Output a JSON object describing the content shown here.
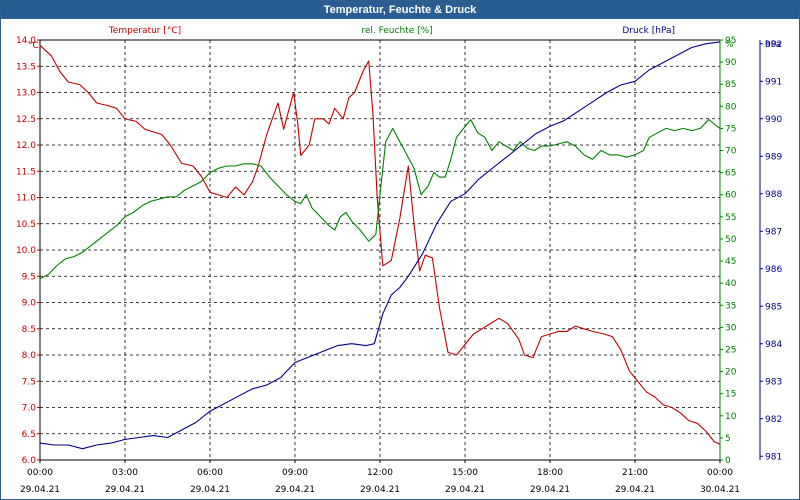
{
  "chart_data": {
    "type": "line",
    "title": "Temperatur, Feuchte & Druck",
    "grid": true,
    "x": {
      "tick_time": [
        "00:00",
        "03:00",
        "06:00",
        "09:00",
        "12:00",
        "15:00",
        "18:00",
        "21:00",
        "00:00"
      ],
      "tick_date": [
        "29.04.21",
        "29.04.21",
        "29.04.21",
        "29.04.21",
        "29.04.21",
        "29.04.21",
        "29.04.21",
        "29.04.21",
        "30.04.21"
      ],
      "range_hours": [
        0,
        24
      ]
    },
    "axes": {
      "temperature": {
        "unit": "°C",
        "ylim": [
          6.0,
          14.0
        ],
        "ticks": [
          "6.0",
          "6.5",
          "7.0",
          "7.5",
          "8.0",
          "8.5",
          "9.0",
          "9.5",
          "10.0",
          "10.5",
          "11.0",
          "11.5",
          "12.0",
          "12.5",
          "13.0",
          "13.5",
          "14.0"
        ]
      },
      "humidity": {
        "unit": "%",
        "ylim": [
          0,
          95
        ],
        "ticks": [
          "0",
          "5",
          "10",
          "15",
          "20",
          "25",
          "30",
          "35",
          "40",
          "45",
          "50",
          "55",
          "60",
          "65",
          "70",
          "75",
          "80",
          "85",
          "90",
          "95"
        ]
      },
      "pressure": {
        "unit": "hPa",
        "ylim": [
          980.9,
          992.1
        ],
        "ticks": [
          "981",
          "982",
          "983",
          "984",
          "985",
          "986",
          "987",
          "988",
          "989",
          "990",
          "991",
          "992"
        ]
      }
    },
    "series": [
      {
        "name": "Temperatur [°C]",
        "axis": "temperature",
        "color": "#c00000",
        "points": [
          [
            0,
            13.9
          ],
          [
            0.4,
            13.7
          ],
          [
            0.7,
            13.4
          ],
          [
            1.0,
            13.2
          ],
          [
            1.4,
            13.15
          ],
          [
            1.7,
            13.0
          ],
          [
            2.0,
            12.8
          ],
          [
            2.4,
            12.75
          ],
          [
            2.7,
            12.7
          ],
          [
            3.0,
            12.5
          ],
          [
            3.4,
            12.45
          ],
          [
            3.7,
            12.3
          ],
          [
            4.0,
            12.25
          ],
          [
            4.3,
            12.2
          ],
          [
            4.6,
            12.0
          ],
          [
            5.0,
            11.65
          ],
          [
            5.4,
            11.6
          ],
          [
            5.7,
            11.4
          ],
          [
            6.0,
            11.1
          ],
          [
            6.3,
            11.05
          ],
          [
            6.6,
            11.0
          ],
          [
            6.9,
            11.2
          ],
          [
            7.2,
            11.05
          ],
          [
            7.5,
            11.3
          ],
          [
            7.7,
            11.6
          ],
          [
            8.0,
            12.2
          ],
          [
            8.2,
            12.5
          ],
          [
            8.4,
            12.8
          ],
          [
            8.6,
            12.3
          ],
          [
            8.8,
            12.7
          ],
          [
            8.95,
            13.0
          ],
          [
            9.1,
            12.4
          ],
          [
            9.2,
            11.8
          ],
          [
            9.5,
            12.0
          ],
          [
            9.7,
            12.5
          ],
          [
            10.0,
            12.5
          ],
          [
            10.2,
            12.4
          ],
          [
            10.4,
            12.7
          ],
          [
            10.7,
            12.5
          ],
          [
            10.9,
            12.9
          ],
          [
            11.1,
            13.0
          ],
          [
            11.4,
            13.4
          ],
          [
            11.6,
            13.6
          ],
          [
            11.75,
            12.6
          ],
          [
            11.9,
            11.0
          ],
          [
            12.1,
            9.7
          ],
          [
            12.4,
            9.8
          ],
          [
            12.7,
            10.6
          ],
          [
            13.0,
            11.6
          ],
          [
            13.2,
            10.5
          ],
          [
            13.4,
            9.6
          ],
          [
            13.6,
            9.9
          ],
          [
            13.85,
            9.85
          ],
          [
            14.1,
            8.9
          ],
          [
            14.4,
            8.05
          ],
          [
            14.7,
            8.0
          ],
          [
            15.0,
            8.2
          ],
          [
            15.3,
            8.4
          ],
          [
            15.6,
            8.5
          ],
          [
            15.9,
            8.6
          ],
          [
            16.2,
            8.7
          ],
          [
            16.5,
            8.6
          ],
          [
            16.9,
            8.3
          ],
          [
            17.1,
            8.0
          ],
          [
            17.4,
            7.95
          ],
          [
            17.7,
            8.35
          ],
          [
            18.0,
            8.4
          ],
          [
            18.3,
            8.45
          ],
          [
            18.6,
            8.45
          ],
          [
            18.9,
            8.55
          ],
          [
            19.2,
            8.5
          ],
          [
            19.5,
            8.45
          ],
          [
            19.9,
            8.4
          ],
          [
            20.2,
            8.35
          ],
          [
            20.5,
            8.1
          ],
          [
            20.8,
            7.7
          ],
          [
            21.1,
            7.5
          ],
          [
            21.4,
            7.3
          ],
          [
            21.7,
            7.2
          ],
          [
            22.0,
            7.05
          ],
          [
            22.3,
            7.0
          ],
          [
            22.6,
            6.9
          ],
          [
            22.9,
            6.75
          ],
          [
            23.2,
            6.7
          ],
          [
            23.5,
            6.55
          ],
          [
            23.8,
            6.35
          ],
          [
            24.0,
            6.3
          ]
        ]
      },
      {
        "name": "rel. Feuchte [%]",
        "axis": "humidity",
        "color": "#008000",
        "points": [
          [
            0,
            41
          ],
          [
            0.3,
            42
          ],
          [
            0.6,
            44
          ],
          [
            0.9,
            45.5
          ],
          [
            1.2,
            46
          ],
          [
            1.5,
            47
          ],
          [
            1.8,
            48.5
          ],
          [
            2.1,
            50
          ],
          [
            2.4,
            51.5
          ],
          [
            2.7,
            53
          ],
          [
            3.0,
            55
          ],
          [
            3.3,
            56
          ],
          [
            3.6,
            57.5
          ],
          [
            3.9,
            58.5
          ],
          [
            4.2,
            59
          ],
          [
            4.5,
            59.5
          ],
          [
            4.8,
            59.5
          ],
          [
            5.1,
            61
          ],
          [
            5.4,
            62
          ],
          [
            5.7,
            63
          ],
          [
            6.0,
            65
          ],
          [
            6.3,
            66
          ],
          [
            6.6,
            66.5
          ],
          [
            6.9,
            66.5
          ],
          [
            7.2,
            67
          ],
          [
            7.5,
            67
          ],
          [
            7.8,
            66.5
          ],
          [
            8.1,
            64
          ],
          [
            8.4,
            62
          ],
          [
            8.7,
            60
          ],
          [
            9.0,
            58.5
          ],
          [
            9.2,
            58
          ],
          [
            9.4,
            60
          ],
          [
            9.6,
            57
          ],
          [
            9.9,
            55
          ],
          [
            10.2,
            53
          ],
          [
            10.4,
            52
          ],
          [
            10.6,
            55
          ],
          [
            10.8,
            56
          ],
          [
            11.0,
            54
          ],
          [
            11.3,
            52
          ],
          [
            11.6,
            49.5
          ],
          [
            11.85,
            51
          ],
          [
            12.0,
            60
          ],
          [
            12.2,
            72
          ],
          [
            12.45,
            75
          ],
          [
            12.7,
            72
          ],
          [
            12.95,
            69
          ],
          [
            13.2,
            66
          ],
          [
            13.45,
            60
          ],
          [
            13.7,
            62
          ],
          [
            13.9,
            65
          ],
          [
            14.1,
            64
          ],
          [
            14.3,
            64
          ],
          [
            14.5,
            68
          ],
          [
            14.7,
            73
          ],
          [
            14.95,
            75
          ],
          [
            15.2,
            77
          ],
          [
            15.45,
            74
          ],
          [
            15.7,
            73
          ],
          [
            15.95,
            70
          ],
          [
            16.2,
            72
          ],
          [
            16.45,
            71
          ],
          [
            16.7,
            70
          ],
          [
            16.95,
            72
          ],
          [
            17.2,
            70.5
          ],
          [
            17.45,
            70
          ],
          [
            17.7,
            71
          ],
          [
            18.0,
            71
          ],
          [
            18.3,
            71.5
          ],
          [
            18.6,
            72
          ],
          [
            18.9,
            71
          ],
          [
            19.2,
            69
          ],
          [
            19.5,
            68
          ],
          [
            19.8,
            70
          ],
          [
            20.1,
            69
          ],
          [
            20.4,
            69
          ],
          [
            20.7,
            68.5
          ],
          [
            21.0,
            69
          ],
          [
            21.3,
            70
          ],
          [
            21.5,
            73
          ],
          [
            21.8,
            74
          ],
          [
            22.1,
            75
          ],
          [
            22.4,
            74.5
          ],
          [
            22.7,
            75
          ],
          [
            23.0,
            74.5
          ],
          [
            23.3,
            75
          ],
          [
            23.6,
            77
          ],
          [
            23.8,
            76
          ],
          [
            24.0,
            75
          ]
        ]
      },
      {
        "name": "Druck [hPa]",
        "axis": "pressure",
        "color": "#00008b",
        "points": [
          [
            0,
            981.35
          ],
          [
            0.5,
            981.3
          ],
          [
            1.0,
            981.3
          ],
          [
            1.5,
            981.2
          ],
          [
            2.0,
            981.3
          ],
          [
            2.5,
            981.35
          ],
          [
            3.0,
            981.45
          ],
          [
            3.5,
            981.5
          ],
          [
            4.0,
            981.55
          ],
          [
            4.5,
            981.5
          ],
          [
            5.0,
            981.7
          ],
          [
            5.5,
            981.9
          ],
          [
            6.0,
            982.2
          ],
          [
            6.5,
            982.4
          ],
          [
            7.0,
            982.6
          ],
          [
            7.5,
            982.8
          ],
          [
            8.0,
            982.9
          ],
          [
            8.5,
            983.1
          ],
          [
            9.0,
            983.5
          ],
          [
            9.5,
            983.65
          ],
          [
            10.0,
            983.8
          ],
          [
            10.5,
            983.95
          ],
          [
            11.0,
            984.0
          ],
          [
            11.5,
            983.95
          ],
          [
            11.8,
            984.0
          ],
          [
            12.1,
            984.8
          ],
          [
            12.4,
            985.3
          ],
          [
            12.7,
            985.5
          ],
          [
            13.0,
            985.8
          ],
          [
            13.5,
            986.4
          ],
          [
            14.0,
            987.2
          ],
          [
            14.5,
            987.8
          ],
          [
            15.0,
            988.0
          ],
          [
            15.5,
            988.4
          ],
          [
            16.0,
            988.7
          ],
          [
            16.5,
            989.0
          ],
          [
            17.0,
            989.3
          ],
          [
            17.5,
            989.6
          ],
          [
            18.0,
            989.8
          ],
          [
            18.5,
            989.95
          ],
          [
            19.0,
            990.2
          ],
          [
            19.5,
            990.45
          ],
          [
            20.0,
            990.7
          ],
          [
            20.5,
            990.9
          ],
          [
            21.0,
            991.0
          ],
          [
            21.5,
            991.3
          ],
          [
            22.0,
            991.5
          ],
          [
            22.5,
            991.7
          ],
          [
            23.0,
            991.9
          ],
          [
            23.5,
            992.0
          ],
          [
            24.0,
            992.05
          ]
        ]
      }
    ]
  }
}
